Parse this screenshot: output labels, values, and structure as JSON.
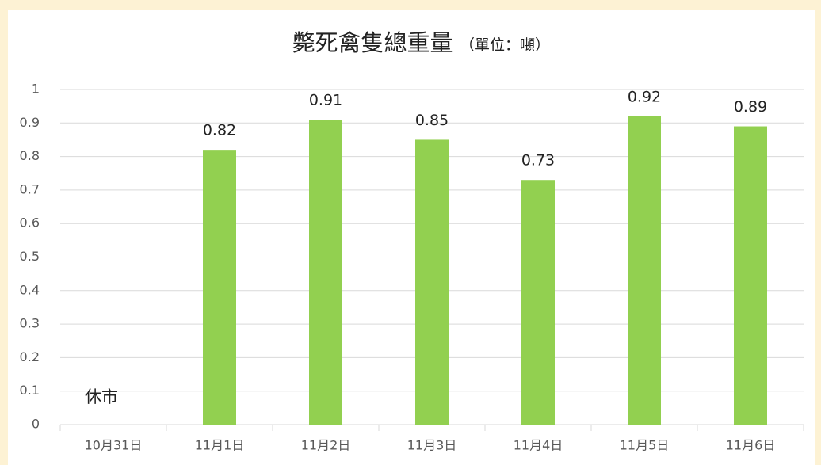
{
  "chart_data": {
    "type": "bar",
    "title": "斃死禽隻總重量",
    "unit_label": "（單位：噸）",
    "categories": [
      "10月31日",
      "11月1日",
      "11月2日",
      "11月3日",
      "11月4日",
      "11月5日",
      "11月6日"
    ],
    "values": [
      null,
      0.82,
      0.91,
      0.85,
      0.73,
      0.92,
      0.89
    ],
    "color": "#92d050",
    "ylim": [
      0,
      1
    ],
    "yticks": [
      0,
      0.1,
      0.2,
      0.3,
      0.4,
      0.5,
      0.6,
      0.7,
      0.8,
      0.9,
      1
    ],
    "grid": true,
    "annotations": [
      {
        "text": "休市",
        "x": "10月31日"
      }
    ]
  }
}
